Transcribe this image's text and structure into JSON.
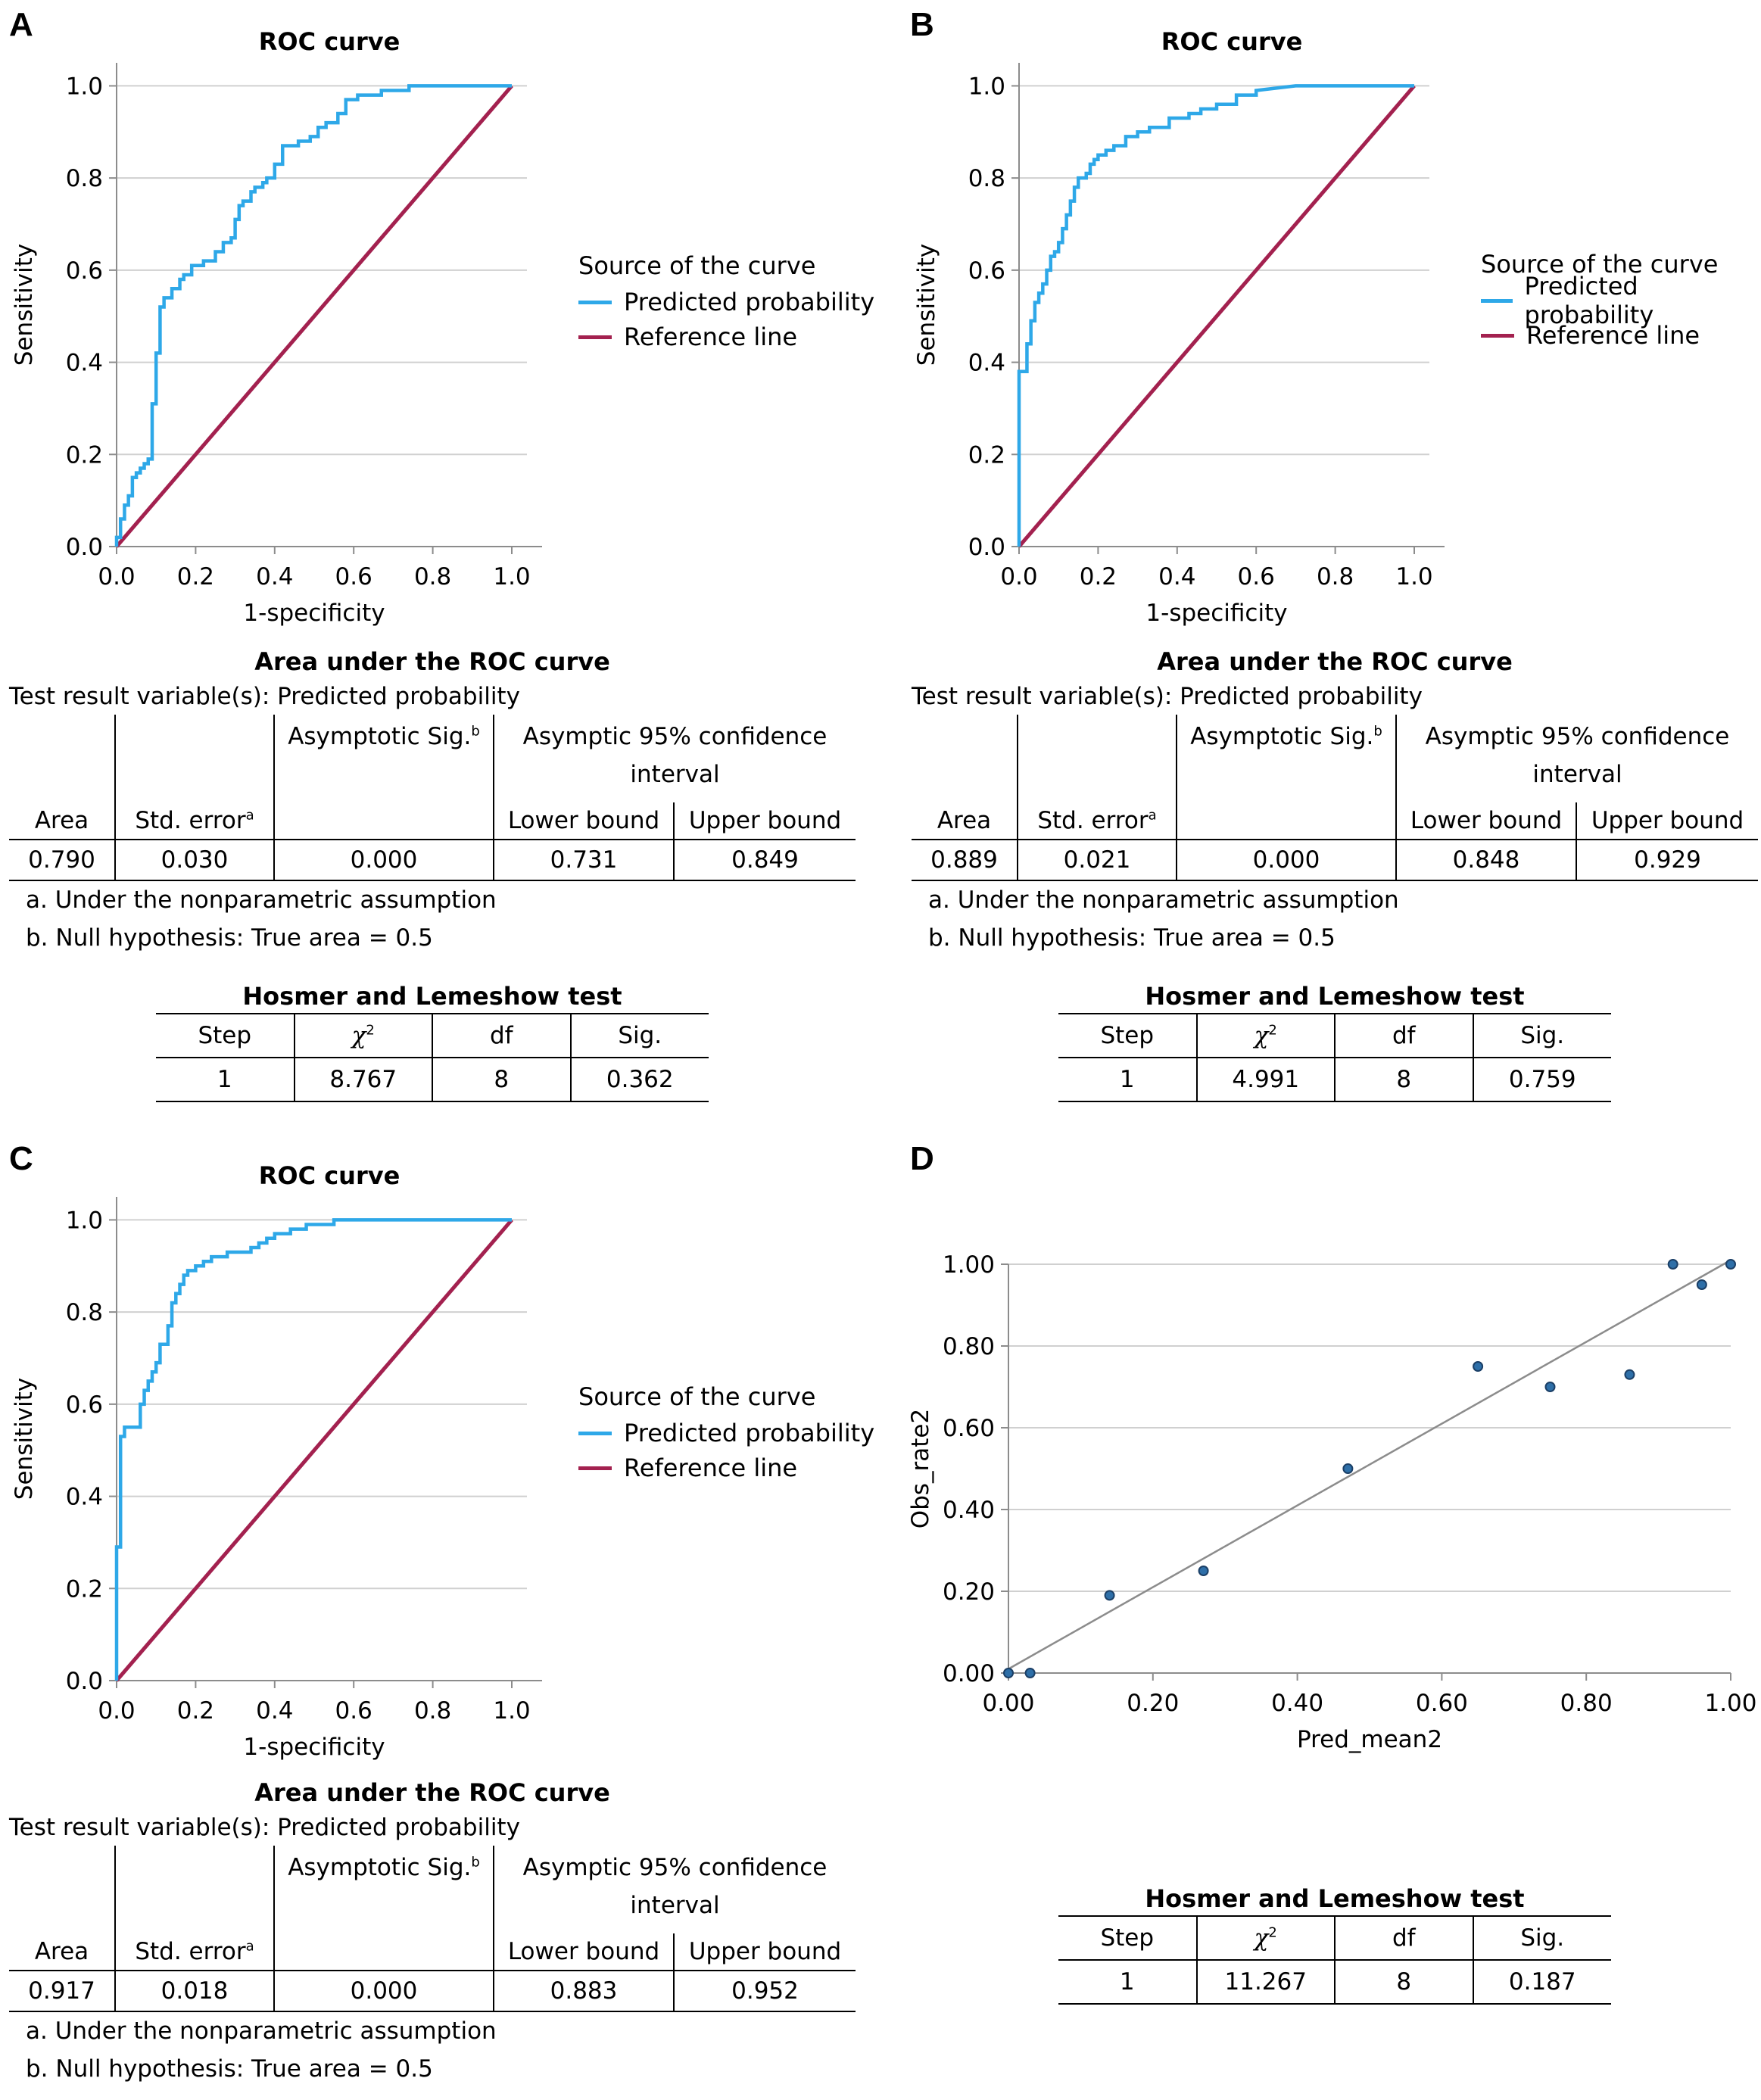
{
  "colors": {
    "predicted": "#2ea8e8",
    "reference": "#a3214f",
    "grid": "#d0d0d0",
    "axis": "#8c8c8c",
    "point": "#2e6fa8",
    "fitline": "#8c8c8c"
  },
  "panels": {
    "A": {
      "label": "A",
      "title": "ROC curve",
      "legend": {
        "title": "Source of the curve",
        "predicted": "Predicted probability",
        "reference": "Reference line"
      },
      "auc": {
        "title": "Area under the ROC curve",
        "test_var": "Test result variable(s): Predicted probability",
        "h_sig": "Asymptotic Sig.",
        "h_sig_sup": "b",
        "h_ci1": "Asymptic 95% confidence",
        "h_ci2": "interval",
        "h_area": "Area",
        "h_se": "Std. error",
        "h_se_sup": "a",
        "h_lower": "Lower bound",
        "h_upper": "Upper bound",
        "area": "0.790",
        "se": "0.030",
        "sig": "0.000",
        "lower": "0.731",
        "upper": "0.849",
        "note_a": "a. Under the nonparametric assumption",
        "note_b": "b. Null hypothesis: True area = 0.5"
      },
      "hl": {
        "title": "Hosmer and Lemeshow test",
        "h_step": "Step",
        "h_chi": "χ",
        "h_chi_sup": "2",
        "h_df": "df",
        "h_sig": "Sig.",
        "step": "1",
        "chi": "8.767",
        "df": "8",
        "sig": "0.362"
      }
    },
    "B": {
      "label": "B",
      "title": "ROC curve",
      "legend": {
        "title": "Source of the curve",
        "predicted": "Predicted probability",
        "reference": "Reference line"
      },
      "auc": {
        "title": "Area under the ROC curve",
        "test_var": "Test result variable(s): Predicted probability",
        "h_sig": "Asymptotic Sig.",
        "h_sig_sup": "b",
        "h_ci1": "Asymptic 95% confidence",
        "h_ci2": "interval",
        "h_area": "Area",
        "h_se": "Std. error",
        "h_se_sup": "a",
        "h_lower": "Lower bound",
        "h_upper": "Upper bound",
        "area": "0.889",
        "se": "0.021",
        "sig": "0.000",
        "lower": "0.848",
        "upper": "0.929",
        "note_a": "a. Under the nonparametric assumption",
        "note_b": "b. Null hypothesis: True area = 0.5"
      },
      "hl": {
        "title": "Hosmer and Lemeshow test",
        "h_step": "Step",
        "h_chi": "χ",
        "h_chi_sup": "2",
        "h_df": "df",
        "h_sig": "Sig.",
        "step": "1",
        "chi": "4.991",
        "df": "8",
        "sig": "0.759"
      }
    },
    "C": {
      "label": "C",
      "title": "ROC curve",
      "legend": {
        "title": "Source of the curve",
        "predicted": "Predicted probability",
        "reference": "Reference line"
      },
      "auc": {
        "title": "Area under the ROC curve",
        "test_var": "Test result variable(s): Predicted probability",
        "h_sig": "Asymptotic Sig.",
        "h_sig_sup": "b",
        "h_ci1": "Asymptic 95% confidence",
        "h_ci2": "interval",
        "h_area": "Area",
        "h_se": "Std. error",
        "h_se_sup": "a",
        "h_lower": "Lower bound",
        "h_upper": "Upper bound",
        "area": "0.917",
        "se": "0.018",
        "sig": "0.000",
        "lower": "0.883",
        "upper": "0.952",
        "note_a": "a. Under the nonparametric assumption",
        "note_b": "b. Null hypothesis: True area = 0.5"
      }
    },
    "D": {
      "label": "D",
      "hl": {
        "title": "Hosmer and Lemeshow test",
        "h_step": "Step",
        "h_chi": "χ",
        "h_chi_sup": "2",
        "h_df": "df",
        "h_sig": "Sig.",
        "step": "1",
        "chi": "11.267",
        "df": "8",
        "sig": "0.187"
      }
    }
  },
  "chart_data": [
    {
      "id": "A",
      "type": "line",
      "title": "ROC curve",
      "xlabel": "1-specificity",
      "ylabel": "Sensitivity",
      "xlim": [
        0,
        1
      ],
      "ylim": [
        0,
        1.05
      ],
      "ticks": [
        "0.0",
        "0.2",
        "0.4",
        "0.6",
        "0.8",
        "1.0"
      ],
      "tick_values": [
        0,
        0.2,
        0.4,
        0.6,
        0.8,
        1.0
      ],
      "series": [
        {
          "name": "Predicted probability",
          "x": [
            0.0,
            0.0,
            0.01,
            0.01,
            0.02,
            0.02,
            0.03,
            0.03,
            0.04,
            0.04,
            0.05,
            0.05,
            0.06,
            0.06,
            0.07,
            0.07,
            0.08,
            0.08,
            0.09,
            0.09,
            0.1,
            0.1,
            0.11,
            0.11,
            0.12,
            0.12,
            0.14,
            0.14,
            0.16,
            0.16,
            0.17,
            0.17,
            0.19,
            0.19,
            0.22,
            0.22,
            0.25,
            0.25,
            0.27,
            0.27,
            0.29,
            0.29,
            0.3,
            0.3,
            0.31,
            0.31,
            0.32,
            0.32,
            0.34,
            0.34,
            0.35,
            0.35,
            0.37,
            0.37,
            0.38,
            0.38,
            0.4,
            0.4,
            0.42,
            0.42,
            0.46,
            0.46,
            0.49,
            0.49,
            0.51,
            0.51,
            0.53,
            0.53,
            0.56,
            0.56,
            0.58,
            0.58,
            0.61,
            0.61,
            0.67,
            0.67,
            0.74,
            0.74,
            0.8,
            1.0
          ],
          "y": [
            0.0,
            0.02,
            0.02,
            0.06,
            0.06,
            0.09,
            0.09,
            0.11,
            0.11,
            0.15,
            0.15,
            0.16,
            0.16,
            0.17,
            0.17,
            0.18,
            0.18,
            0.19,
            0.19,
            0.31,
            0.31,
            0.42,
            0.42,
            0.52,
            0.52,
            0.54,
            0.54,
            0.56,
            0.56,
            0.58,
            0.58,
            0.59,
            0.59,
            0.61,
            0.61,
            0.62,
            0.62,
            0.64,
            0.64,
            0.66,
            0.66,
            0.67,
            0.67,
            0.71,
            0.71,
            0.74,
            0.74,
            0.75,
            0.75,
            0.77,
            0.77,
            0.78,
            0.78,
            0.79,
            0.79,
            0.8,
            0.8,
            0.83,
            0.83,
            0.87,
            0.87,
            0.88,
            0.88,
            0.89,
            0.89,
            0.91,
            0.91,
            0.92,
            0.92,
            0.94,
            0.94,
            0.97,
            0.97,
            0.98,
            0.98,
            0.99,
            0.99,
            1.0,
            1.0,
            1.0
          ]
        },
        {
          "name": "Reference line",
          "x": [
            0,
            1
          ],
          "y": [
            0,
            1
          ]
        }
      ]
    },
    {
      "id": "B",
      "type": "line",
      "title": "ROC curve",
      "xlabel": "1-specificity",
      "ylabel": "Sensitivity",
      "xlim": [
        0,
        1
      ],
      "ylim": [
        0,
        1.05
      ],
      "ticks": [
        "0.0",
        "0.2",
        "0.4",
        "0.6",
        "0.8",
        "1.0"
      ],
      "tick_values": [
        0,
        0.2,
        0.4,
        0.6,
        0.8,
        1.0
      ],
      "series": [
        {
          "name": "Predicted probability",
          "x": [
            0.0,
            0.0,
            0.02,
            0.02,
            0.03,
            0.03,
            0.04,
            0.04,
            0.05,
            0.05,
            0.06,
            0.06,
            0.07,
            0.07,
            0.08,
            0.08,
            0.09,
            0.09,
            0.1,
            0.1,
            0.11,
            0.11,
            0.12,
            0.12,
            0.13,
            0.13,
            0.14,
            0.14,
            0.15,
            0.15,
            0.17,
            0.17,
            0.18,
            0.18,
            0.19,
            0.19,
            0.2,
            0.2,
            0.22,
            0.22,
            0.24,
            0.24,
            0.27,
            0.27,
            0.3,
            0.3,
            0.33,
            0.33,
            0.38,
            0.38,
            0.43,
            0.43,
            0.46,
            0.46,
            0.5,
            0.5,
            0.55,
            0.55,
            0.6,
            0.6,
            0.7,
            1.0
          ],
          "y": [
            0.0,
            0.38,
            0.38,
            0.44,
            0.44,
            0.49,
            0.49,
            0.53,
            0.53,
            0.55,
            0.55,
            0.57,
            0.57,
            0.6,
            0.6,
            0.63,
            0.63,
            0.64,
            0.64,
            0.66,
            0.66,
            0.69,
            0.69,
            0.72,
            0.72,
            0.75,
            0.75,
            0.78,
            0.78,
            0.8,
            0.8,
            0.81,
            0.81,
            0.83,
            0.83,
            0.84,
            0.84,
            0.85,
            0.85,
            0.86,
            0.86,
            0.87,
            0.87,
            0.89,
            0.89,
            0.9,
            0.9,
            0.91,
            0.91,
            0.93,
            0.93,
            0.94,
            0.94,
            0.95,
            0.95,
            0.96,
            0.96,
            0.98,
            0.98,
            0.99,
            1.0,
            1.0
          ]
        },
        {
          "name": "Reference line",
          "x": [
            0,
            1
          ],
          "y": [
            0,
            1
          ]
        }
      ]
    },
    {
      "id": "C",
      "type": "line",
      "title": "ROC curve",
      "xlabel": "1-specificity",
      "ylabel": "Sensitivity",
      "xlim": [
        0,
        1
      ],
      "ylim": [
        0,
        1.05
      ],
      "ticks": [
        "0.0",
        "0.2",
        "0.4",
        "0.6",
        "0.8",
        "1.0"
      ],
      "tick_values": [
        0,
        0.2,
        0.4,
        0.6,
        0.8,
        1.0
      ],
      "series": [
        {
          "name": "Predicted probability",
          "x": [
            0.0,
            0.0,
            0.01,
            0.01,
            0.02,
            0.02,
            0.06,
            0.06,
            0.07,
            0.07,
            0.08,
            0.08,
            0.09,
            0.09,
            0.1,
            0.1,
            0.11,
            0.11,
            0.13,
            0.13,
            0.14,
            0.14,
            0.15,
            0.15,
            0.16,
            0.16,
            0.17,
            0.17,
            0.18,
            0.18,
            0.2,
            0.2,
            0.22,
            0.22,
            0.24,
            0.24,
            0.28,
            0.28,
            0.34,
            0.34,
            0.36,
            0.36,
            0.38,
            0.38,
            0.4,
            0.4,
            0.44,
            0.44,
            0.48,
            0.48,
            0.55,
            0.55,
            0.6,
            1.0
          ],
          "y": [
            0.0,
            0.29,
            0.29,
            0.53,
            0.53,
            0.55,
            0.55,
            0.6,
            0.6,
            0.63,
            0.63,
            0.65,
            0.65,
            0.67,
            0.67,
            0.69,
            0.69,
            0.73,
            0.73,
            0.77,
            0.77,
            0.82,
            0.82,
            0.84,
            0.84,
            0.86,
            0.86,
            0.88,
            0.88,
            0.89,
            0.89,
            0.9,
            0.9,
            0.91,
            0.91,
            0.92,
            0.92,
            0.93,
            0.93,
            0.94,
            0.94,
            0.95,
            0.95,
            0.96,
            0.96,
            0.97,
            0.97,
            0.98,
            0.98,
            0.99,
            0.99,
            1.0,
            1.0,
            1.0
          ]
        },
        {
          "name": "Reference line",
          "x": [
            0,
            1
          ],
          "y": [
            0,
            1
          ]
        }
      ]
    },
    {
      "id": "D",
      "type": "scatter",
      "xlabel": "Pred_mean2",
      "ylabel": "Obs_rate2",
      "xlim": [
        0,
        1
      ],
      "ylim": [
        0,
        1
      ],
      "ticks": [
        "0.00",
        "0.20",
        "0.40",
        "0.60",
        "0.80",
        "1.00"
      ],
      "tick_values": [
        0,
        0.2,
        0.4,
        0.6,
        0.8,
        1.0
      ],
      "points": {
        "x": [
          0.0,
          0.03,
          0.14,
          0.27,
          0.47,
          0.65,
          0.75,
          0.86,
          0.92,
          0.96,
          1.0
        ],
        "y": [
          0.0,
          0.0,
          0.19,
          0.25,
          0.5,
          0.75,
          0.7,
          0.73,
          1.0,
          0.95,
          1.0
        ]
      },
      "fit_line": {
        "x": [
          0,
          1
        ],
        "y": [
          0.01,
          1.01
        ]
      }
    }
  ]
}
